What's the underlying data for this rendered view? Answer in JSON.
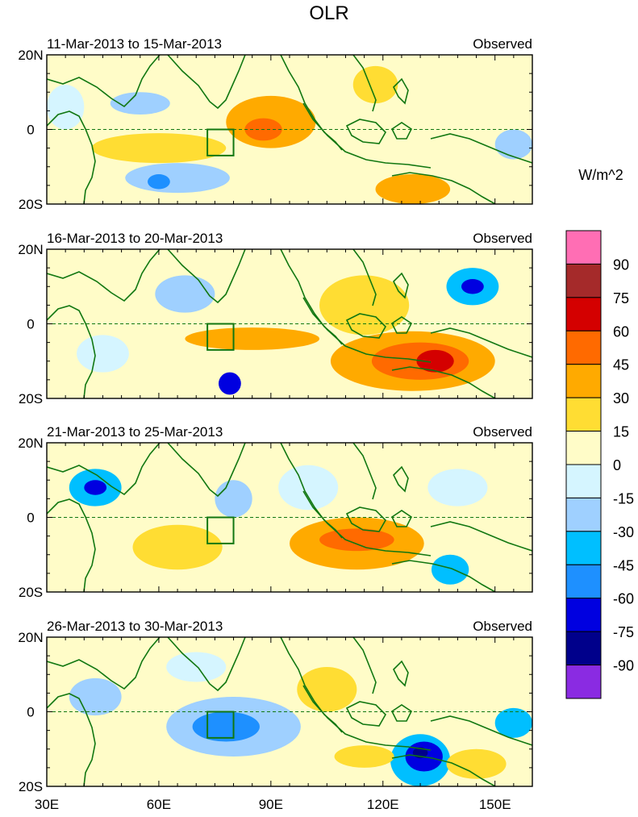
{
  "chart_data": {
    "type": "heatmap",
    "title": "OLR",
    "units_label": "W/m^2",
    "x_ticks": [
      {
        "value": 30,
        "label": "30E"
      },
      {
        "value": 60,
        "label": "60E"
      },
      {
        "value": 90,
        "label": "90E"
      },
      {
        "value": 120,
        "label": "120E"
      },
      {
        "value": 150,
        "label": "150E"
      }
    ],
    "y_ticks": [
      {
        "value": 20,
        "label": "20N"
      },
      {
        "value": 0,
        "label": "0"
      },
      {
        "value": -20,
        "label": "20S"
      }
    ],
    "xlim": [
      30,
      160
    ],
    "ylim": [
      -20,
      20
    ],
    "equator_line": "dashed",
    "reference_box": {
      "lon": [
        73,
        80
      ],
      "lat": [
        -7,
        0
      ]
    },
    "colorbar": {
      "levels": [
        "90",
        "75",
        "60",
        "45",
        "30",
        "15",
        "0",
        "-15",
        "-30",
        "-45",
        "-60",
        "-75",
        "-90"
      ],
      "colors": [
        "#ff6eb4",
        "#a52a2a",
        "#d40000",
        "#ff6a00",
        "#ffaa00",
        "#ffdd33",
        "#fffcc8",
        "#d5f5ff",
        "#9fd0ff",
        "#00bfff",
        "#1e90ff",
        "#0000e0",
        "#00008b",
        "#8a2be2"
      ]
    },
    "panels": [
      {
        "period": "11-Mar-2013 to 15-Mar-2013",
        "label": "Observed",
        "blobs": [
          {
            "lon": 90,
            "lat": 2,
            "rx": 12,
            "ry": 7,
            "value": 30
          },
          {
            "lon": 88,
            "lat": 0,
            "rx": 5,
            "ry": 3,
            "value": 45
          },
          {
            "lon": 128,
            "lat": -16,
            "rx": 10,
            "ry": 4,
            "value": 30
          },
          {
            "lon": 60,
            "lat": -5,
            "rx": 18,
            "ry": 4,
            "value": 15
          },
          {
            "lon": 55,
            "lat": 7,
            "rx": 8,
            "ry": 3,
            "value": -30
          },
          {
            "lon": 65,
            "lat": -13,
            "rx": 14,
            "ry": 4,
            "value": -30
          },
          {
            "lon": 60,
            "lat": -14,
            "rx": 3,
            "ry": 2,
            "value": -60
          },
          {
            "lon": 35,
            "lat": 6,
            "rx": 5,
            "ry": 6,
            "value": -15
          },
          {
            "lon": 155,
            "lat": -4,
            "rx": 5,
            "ry": 4,
            "value": -30
          },
          {
            "lon": 118,
            "lat": 12,
            "rx": 6,
            "ry": 5,
            "value": 15
          }
        ]
      },
      {
        "period": "16-Mar-2013 to 20-Mar-2013",
        "label": "Observed",
        "blobs": [
          {
            "lon": 128,
            "lat": -10,
            "rx": 22,
            "ry": 8,
            "value": 30
          },
          {
            "lon": 130,
            "lat": -10,
            "rx": 13,
            "ry": 5,
            "value": 45
          },
          {
            "lon": 134,
            "lat": -10,
            "rx": 5,
            "ry": 3,
            "value": 60
          },
          {
            "lon": 85,
            "lat": -4,
            "rx": 18,
            "ry": 3,
            "value": 30
          },
          {
            "lon": 115,
            "lat": 5,
            "rx": 12,
            "ry": 8,
            "value": 15
          },
          {
            "lon": 67,
            "lat": 8,
            "rx": 8,
            "ry": 5,
            "value": -30
          },
          {
            "lon": 79,
            "lat": -16,
            "rx": 3,
            "ry": 3,
            "value": -75
          },
          {
            "lon": 144,
            "lat": 10,
            "rx": 7,
            "ry": 5,
            "value": -45
          },
          {
            "lon": 144,
            "lat": 10,
            "rx": 3,
            "ry": 2,
            "value": -75
          },
          {
            "lon": 45,
            "lat": -8,
            "rx": 7,
            "ry": 5,
            "value": -15
          }
        ]
      },
      {
        "period": "21-Mar-2013 to 25-Mar-2013",
        "label": "Observed",
        "blobs": [
          {
            "lon": 43,
            "lat": 8,
            "rx": 7,
            "ry": 5,
            "value": -45
          },
          {
            "lon": 43,
            "lat": 8,
            "rx": 3,
            "ry": 2,
            "value": -75
          },
          {
            "lon": 113,
            "lat": -7,
            "rx": 18,
            "ry": 7,
            "value": 30
          },
          {
            "lon": 113,
            "lat": -6,
            "rx": 10,
            "ry": 3,
            "value": 45
          },
          {
            "lon": 65,
            "lat": -8,
            "rx": 12,
            "ry": 6,
            "value": 15
          },
          {
            "lon": 80,
            "lat": 5,
            "rx": 5,
            "ry": 5,
            "value": -30
          },
          {
            "lon": 138,
            "lat": -14,
            "rx": 5,
            "ry": 4,
            "value": -45
          },
          {
            "lon": 140,
            "lat": 8,
            "rx": 8,
            "ry": 5,
            "value": -15
          },
          {
            "lon": 100,
            "lat": 8,
            "rx": 8,
            "ry": 6,
            "value": -15
          }
        ]
      },
      {
        "period": "26-Mar-2013 to 30-Mar-2013",
        "label": "Observed",
        "blobs": [
          {
            "lon": 80,
            "lat": -4,
            "rx": 18,
            "ry": 8,
            "value": -30
          },
          {
            "lon": 78,
            "lat": -4,
            "rx": 9,
            "ry": 4,
            "value": -60
          },
          {
            "lon": 130,
            "lat": -13,
            "rx": 8,
            "ry": 7,
            "value": -45
          },
          {
            "lon": 131,
            "lat": -12,
            "rx": 5,
            "ry": 4,
            "value": -75
          },
          {
            "lon": 130,
            "lat": -11,
            "rx": 2,
            "ry": 1.5,
            "value": -90
          },
          {
            "lon": 43,
            "lat": 4,
            "rx": 7,
            "ry": 5,
            "value": -30
          },
          {
            "lon": 155,
            "lat": -3,
            "rx": 5,
            "ry": 4,
            "value": -45
          },
          {
            "lon": 105,
            "lat": 6,
            "rx": 8,
            "ry": 6,
            "value": 15
          },
          {
            "lon": 145,
            "lat": -14,
            "rx": 8,
            "ry": 4,
            "value": 15
          },
          {
            "lon": 70,
            "lat": 12,
            "rx": 8,
            "ry": 4,
            "value": -15
          },
          {
            "lon": 115,
            "lat": -12,
            "rx": 8,
            "ry": 3,
            "value": 15
          }
        ]
      }
    ]
  }
}
